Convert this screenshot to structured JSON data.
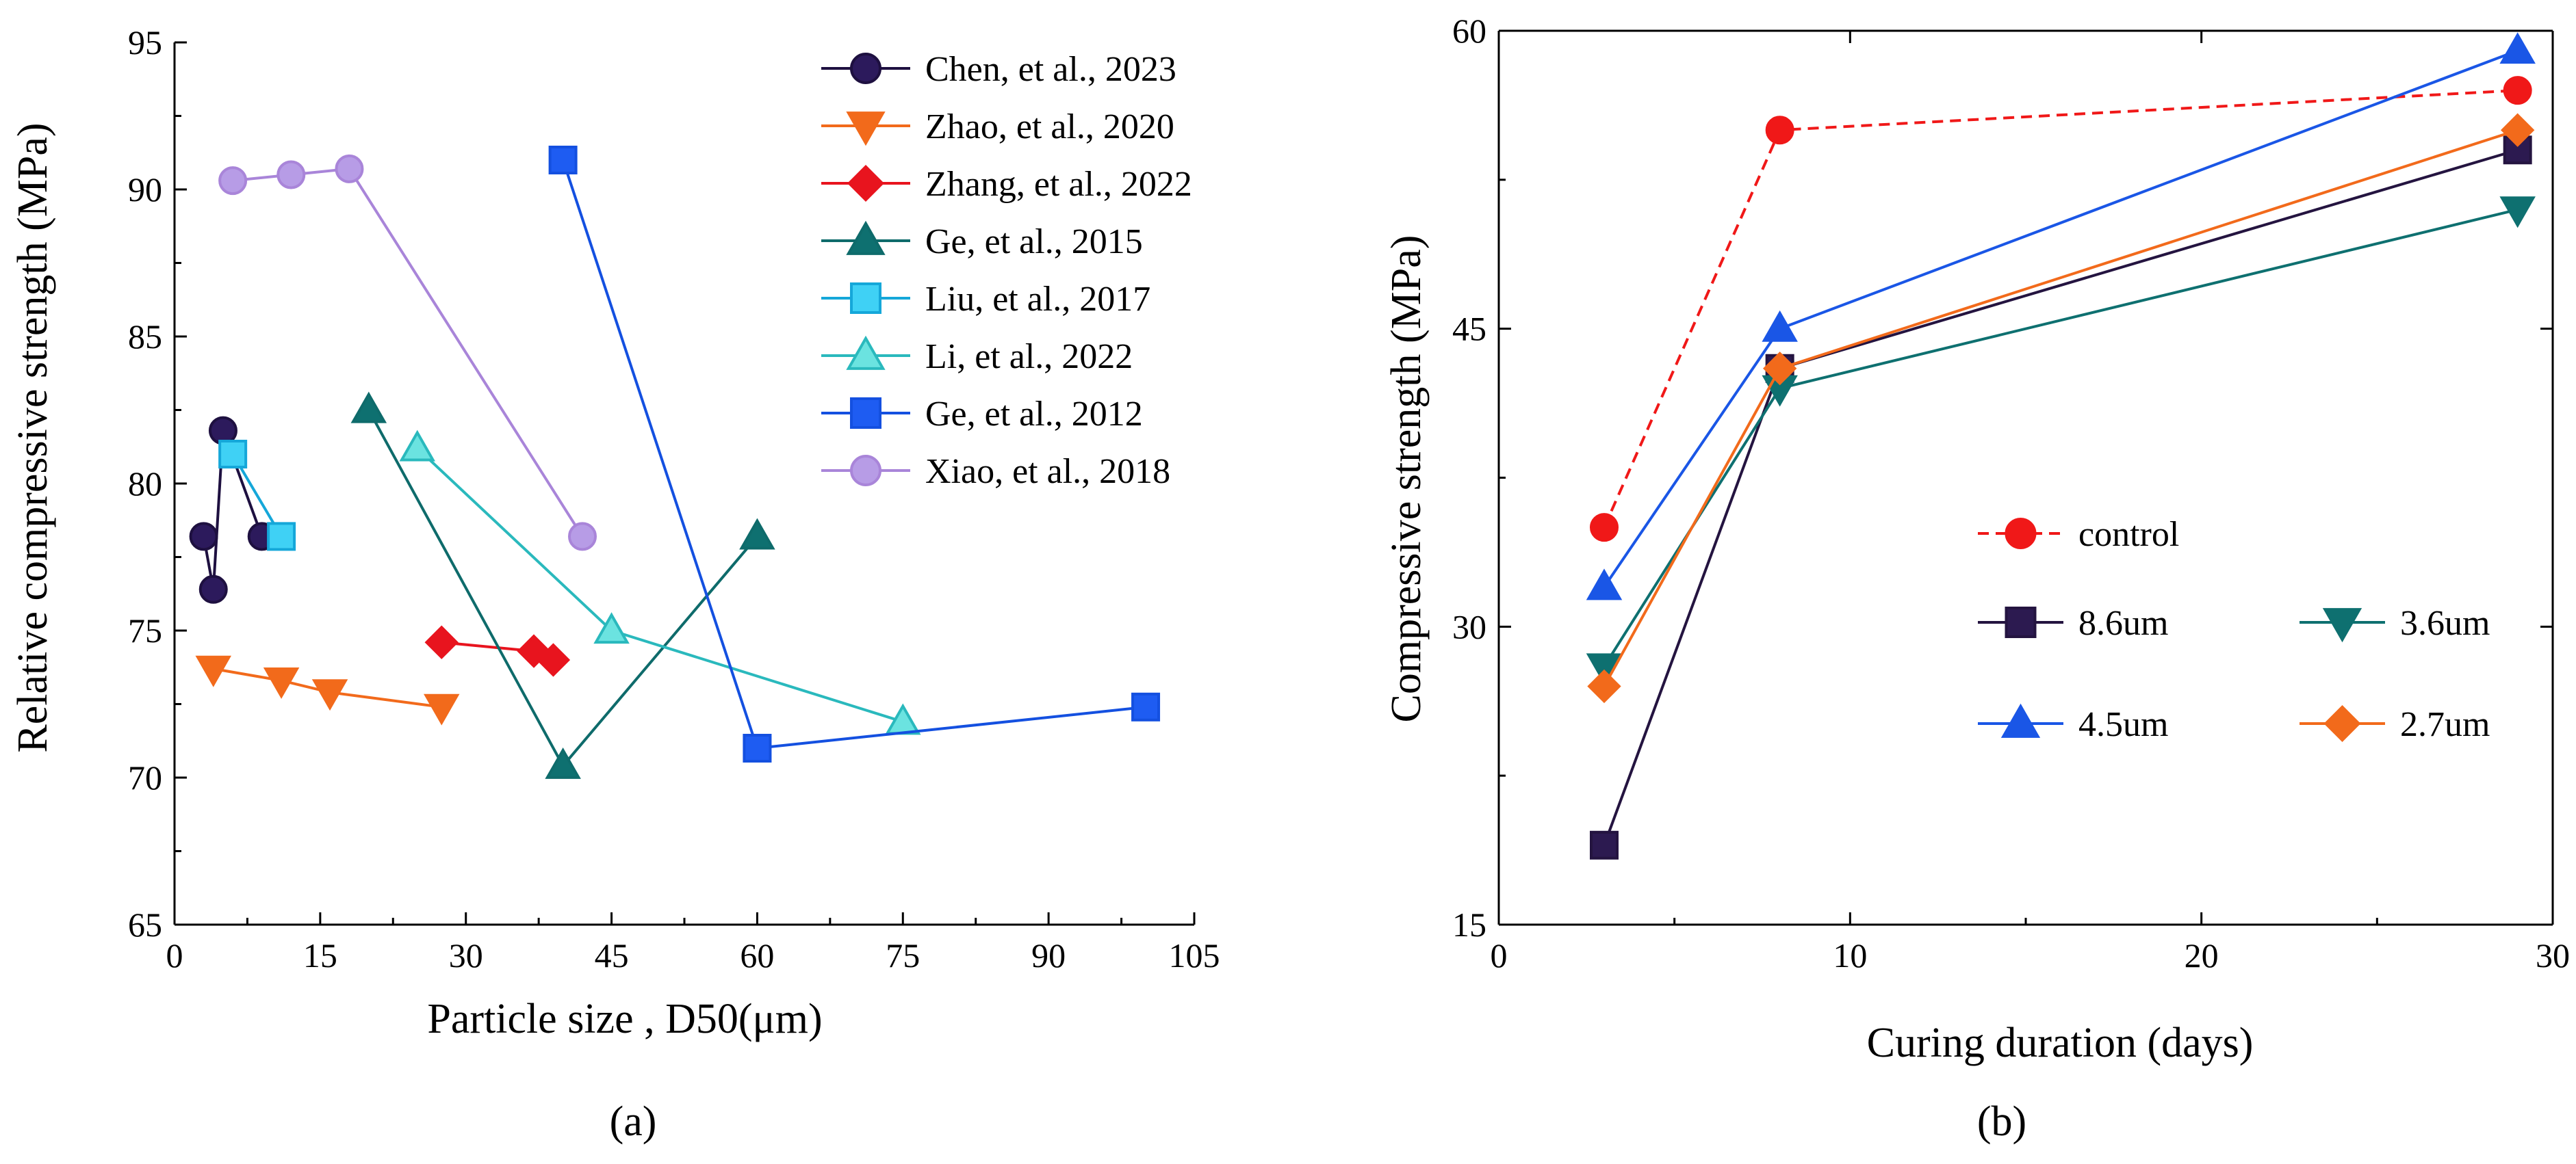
{
  "chart_data": [
    {
      "type": "line",
      "panel_label": "(a)",
      "xlabel": "Particle size , D50(μm)",
      "ylabel": "Relative compressive strength (MPa)",
      "xlim": [
        0,
        105
      ],
      "ylim": [
        65,
        95
      ],
      "xticks": [
        0,
        15,
        30,
        45,
        60,
        75,
        90,
        105
      ],
      "yticks": [
        65,
        70,
        75,
        80,
        85,
        90,
        95
      ],
      "legend_position": "top-right",
      "series": [
        {
          "name": "Chen, et al., 2023",
          "marker": "circle",
          "color": "#1e1040",
          "fill": "#2c1a5c",
          "x": [
            3,
            4,
            5,
            9
          ],
          "y": [
            78.2,
            76.4,
            81.8,
            78.2
          ]
        },
        {
          "name": "Zhao, et al., 2020",
          "marker": "triangle-down",
          "color": "#f26a1b",
          "fill": "#f26a1b",
          "x": [
            4,
            11,
            16,
            27.5
          ],
          "y": [
            73.7,
            73.3,
            72.9,
            72.4
          ]
        },
        {
          "name": "Zhang, et al., 2022",
          "marker": "diamond",
          "color": "#e8141e",
          "fill": "#e8141e",
          "x": [
            27.5,
            37,
            39
          ],
          "y": [
            74.6,
            74.3,
            74.0
          ]
        },
        {
          "name": "Ge, et al., 2015",
          "marker": "triangle-up",
          "color": "#0e6b6b",
          "fill": "#0e7070",
          "x": [
            20,
            40,
            60
          ],
          "y": [
            82.5,
            70.4,
            78.2
          ]
        },
        {
          "name": "Liu, et al., 2017",
          "marker": "square",
          "color": "#15a7d9",
          "fill": "#3fd1f5",
          "x": [
            6,
            11
          ],
          "y": [
            81.0,
            78.2
          ]
        },
        {
          "name": "Li, et al., 2022",
          "marker": "triangle-up",
          "color": "#2ab9bd",
          "fill": "#6be3e0",
          "x": [
            25,
            45,
            75
          ],
          "y": [
            81.2,
            75.0,
            71.9
          ]
        },
        {
          "name": "Ge, et al., 2012",
          "marker": "square",
          "color": "#1450e0",
          "fill": "#1e5cf2",
          "x": [
            40,
            60,
            100
          ],
          "y": [
            91.0,
            71.0,
            72.4
          ]
        },
        {
          "name": "Xiao, et al., 2018",
          "marker": "circle",
          "color": "#a985d9",
          "fill": "#b79ce6",
          "x": [
            6,
            12,
            18,
            42
          ],
          "y": [
            90.3,
            90.5,
            90.7,
            78.2
          ]
        }
      ]
    },
    {
      "type": "line",
      "panel_label": "(b)",
      "xlabel": "Curing duration (days)",
      "ylabel": "Compressive strength (MPa)",
      "xlim": [
        0,
        30
      ],
      "ylim": [
        15,
        60
      ],
      "xticks": [
        0,
        10,
        20,
        30
      ],
      "yticks": [
        15,
        30,
        45,
        60
      ],
      "legend_position": "center-right",
      "series": [
        {
          "name": "control",
          "marker": "circle",
          "color": "#f01818",
          "fill": "#f01818",
          "dashed": true,
          "x": [
            3,
            8,
            29
          ],
          "y": [
            35.0,
            55.0,
            57.0
          ]
        },
        {
          "name": "8.6um",
          "marker": "square",
          "color": "#241440",
          "fill": "#2c1a50",
          "x": [
            3,
            8,
            29
          ],
          "y": [
            19.0,
            43.0,
            54.0
          ]
        },
        {
          "name": "3.6um",
          "marker": "triangle-down",
          "color": "#0e7070",
          "fill": "#0e7070",
          "x": [
            3,
            8,
            29
          ],
          "y": [
            28.0,
            42.0,
            51.0
          ]
        },
        {
          "name": "4.5um",
          "marker": "triangle-up",
          "color": "#1a56e6",
          "fill": "#1a56e6",
          "x": [
            3,
            8,
            29
          ],
          "y": [
            32.0,
            45.0,
            59.0
          ]
        },
        {
          "name": "2.7um",
          "marker": "diamond",
          "color": "#f26a1b",
          "fill": "#f26a1b",
          "x": [
            3,
            8,
            29
          ],
          "y": [
            27.0,
            43.0,
            55.0
          ]
        }
      ]
    }
  ]
}
